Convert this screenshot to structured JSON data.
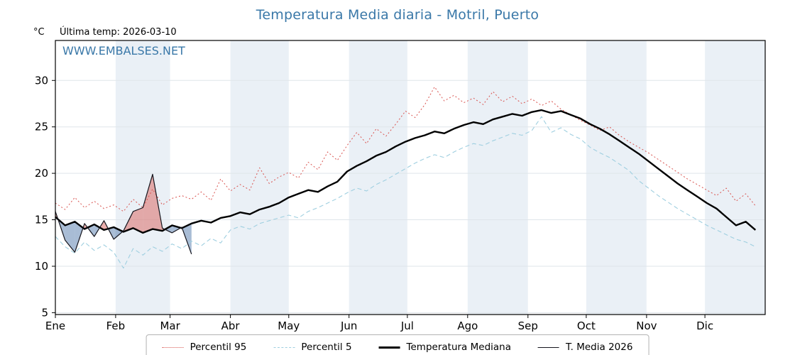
{
  "page": {
    "title": "Temperatura Media diaria - Motril, Puerto",
    "unit_label": "°C",
    "last_temp_label": "Última temp: 2026-03-10",
    "watermark": "WWW.EMBALSES.NET"
  },
  "colors": {
    "title": "#3a78a8",
    "watermark": "#3a78a8",
    "band": "#eaf0f6",
    "grid": "#dfe5ea",
    "axis": "#000000",
    "fill_above": "rgba(217,95,90,0.5)",
    "fill_below": "rgba(96,133,179,0.55)"
  },
  "chart_data": {
    "type": "line",
    "title": "Temperatura Media diaria - Motril, Puerto",
    "xlabel": "",
    "ylabel": "°C",
    "ylim": [
      4.8,
      34.3
    ],
    "y_ticks": [
      5,
      10,
      15,
      20,
      25,
      30
    ],
    "x_tick_labels": [
      "Ene",
      "Feb",
      "Mar",
      "Abr",
      "May",
      "Jun",
      "Jul",
      "Ago",
      "Sep",
      "Oct",
      "Nov",
      "Dic"
    ],
    "month_start_days": [
      0,
      31,
      59,
      90,
      120,
      151,
      181,
      212,
      243,
      273,
      304,
      334
    ],
    "days_total": 365,
    "step_days": 5,
    "grid": true,
    "legend_position": "bottom-center",
    "last_observation_date": "2026-03-10",
    "series": [
      {
        "key": "p95",
        "name": "Percentil 95",
        "color": "#d9534f",
        "dash": "2 3",
        "width": 1,
        "values": [
          16.8,
          16.1,
          17.4,
          16.3,
          17.0,
          16.2,
          16.6,
          15.9,
          17.2,
          16.3,
          18.3,
          16.6,
          17.3,
          17.6,
          17.2,
          18.0,
          17.1,
          19.4,
          18.1,
          18.8,
          18.2,
          20.6,
          18.9,
          19.6,
          20.1,
          19.5,
          21.2,
          20.4,
          22.3,
          21.4,
          23.0,
          24.4,
          23.2,
          24.8,
          24.0,
          25.3,
          26.7,
          26.0,
          27.4,
          29.3,
          27.8,
          28.4,
          27.6,
          28.1,
          27.4,
          28.8,
          27.7,
          28.3,
          27.5,
          28.0,
          27.3,
          27.8,
          26.9,
          26.3,
          25.7,
          25.2,
          24.6,
          25.0,
          24.1,
          23.4,
          22.8,
          22.2,
          21.5,
          20.8,
          20.1,
          19.4,
          18.8,
          18.2,
          17.6,
          18.4,
          17.0,
          17.8,
          16.5
        ]
      },
      {
        "key": "p5",
        "name": "Percentil 5",
        "color": "#9fcfe0",
        "dash": "6 4",
        "width": 1.1,
        "values": [
          13.2,
          12.1,
          11.4,
          12.6,
          11.7,
          12.3,
          11.5,
          9.8,
          11.9,
          11.2,
          12.1,
          11.6,
          12.4,
          11.9,
          12.7,
          12.2,
          13.0,
          12.5,
          13.9,
          14.3,
          14.0,
          14.6,
          14.9,
          15.2,
          15.5,
          15.2,
          15.9,
          16.3,
          16.8,
          17.3,
          17.9,
          18.4,
          18.1,
          18.8,
          19.3,
          19.9,
          20.5,
          21.1,
          21.6,
          22.0,
          21.7,
          22.3,
          22.8,
          23.2,
          23.0,
          23.5,
          23.9,
          24.3,
          24.1,
          24.6,
          26.1,
          24.4,
          24.9,
          24.2,
          23.7,
          22.8,
          22.2,
          21.7,
          21.0,
          20.3,
          19.2,
          18.4,
          17.6,
          16.9,
          16.2,
          15.6,
          15.0,
          14.4,
          13.9,
          13.4,
          12.9,
          12.6,
          12.1
        ]
      },
      {
        "key": "median",
        "name": "Temperatura Mediana",
        "color": "#000000",
        "dash": "",
        "width": 2.4,
        "values": [
          15.3,
          14.4,
          14.8,
          14.0,
          14.5,
          13.9,
          14.2,
          13.7,
          14.1,
          13.6,
          14.0,
          13.8,
          14.4,
          14.1,
          14.6,
          14.9,
          14.7,
          15.2,
          15.4,
          15.8,
          15.6,
          16.1,
          16.4,
          16.8,
          17.4,
          17.8,
          18.2,
          18.0,
          18.6,
          19.1,
          20.2,
          20.8,
          21.3,
          21.9,
          22.3,
          22.9,
          23.4,
          23.8,
          24.1,
          24.5,
          24.3,
          24.8,
          25.2,
          25.5,
          25.3,
          25.8,
          26.1,
          26.4,
          26.2,
          26.6,
          26.8,
          26.5,
          26.7,
          26.3,
          25.9,
          25.3,
          24.8,
          24.2,
          23.5,
          22.8,
          22.1,
          21.3,
          20.5,
          19.7,
          18.9,
          18.2,
          17.5,
          16.8,
          16.2,
          15.3,
          14.4,
          14.8,
          13.9
        ]
      },
      {
        "key": "t2026",
        "name": "T. Media 2026",
        "color": "#15151d",
        "dash": "",
        "width": 1.2,
        "values": [
          15.9,
          12.8,
          11.5,
          14.6,
          13.2,
          14.9,
          12.9,
          13.8,
          15.9,
          16.3,
          19.9,
          14.1,
          13.6,
          14.2,
          11.3
        ]
      }
    ]
  }
}
